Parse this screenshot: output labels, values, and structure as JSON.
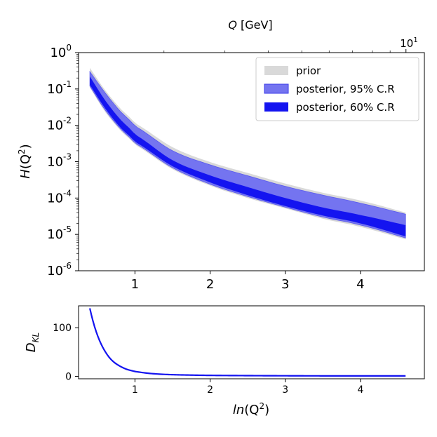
{
  "chart_data": [
    {
      "type": "area",
      "ylabel_main": "H",
      "ylabel_arg": "(Q",
      "ylabel_exp": "2",
      "ylabel_close": ")",
      "top_xlabel_italic": "Q",
      "top_xlabel_unit": " [GeV]",
      "top_tick_base": "10",
      "top_tick_exp": "1",
      "xlim": [
        0.25,
        4.85
      ],
      "ylim_log10": [
        -6,
        0
      ],
      "yscale": "log",
      "x_ticks": [
        "1",
        "2",
        "3",
        "4"
      ],
      "y_ticks": [
        {
          "base": "10",
          "exp": "0"
        },
        {
          "base": "10",
          "exp": "-1"
        },
        {
          "base": "10",
          "exp": "-2"
        },
        {
          "base": "10",
          "exp": "-3"
        },
        {
          "base": "10",
          "exp": "-4"
        },
        {
          "base": "10",
          "exp": "-5"
        },
        {
          "base": "10",
          "exp": "-6"
        }
      ],
      "legend_position": "upper right",
      "series": [
        {
          "name": "prior",
          "color": "#d9d9d9",
          "x": [
            0.4,
            0.6,
            0.8,
            1.0,
            1.5,
            2.0,
            2.5,
            3.0,
            3.5,
            4.0,
            4.6
          ],
          "upper": [
            0.38,
            0.095,
            0.03,
            0.0115,
            0.0025,
            0.00098,
            0.00049,
            0.00025,
            0.00014,
            8.5e-05,
            4e-05
          ],
          "lower": [
            0.11,
            0.024,
            0.0075,
            0.0029,
            0.00062,
            0.00022,
            0.0001,
            5.2e-05,
            2.7e-05,
            1.6e-05,
            7.3e-06
          ]
        },
        {
          "name": "posterior, 95% C.R",
          "color": "#7474f0",
          "x": [
            0.4,
            0.6,
            0.8,
            1.0,
            1.5,
            2.0,
            2.5,
            3.0,
            3.5,
            4.0,
            4.6
          ],
          "upper": [
            0.3,
            0.08,
            0.025,
            0.0095,
            0.002,
            0.00082,
            0.00041,
            0.00021,
            0.00012,
            7.2e-05,
            3.6e-05
          ],
          "lower": [
            0.12,
            0.027,
            0.0083,
            0.0032,
            0.00068,
            0.00024,
            0.00011,
            5.6e-05,
            3e-05,
            1.8e-05,
            8e-06
          ]
        },
        {
          "name": "posterior, 60% C.R",
          "color": "#1414f0",
          "x": [
            0.4,
            0.6,
            0.8,
            1.0,
            1.5,
            2.0,
            2.5,
            3.0,
            3.5,
            4.0,
            4.6
          ],
          "upper": [
            0.22,
            0.05,
            0.015,
            0.0056,
            0.0011,
            0.00042,
            0.0002,
            0.0001,
            5.5e-05,
            3.4e-05,
            1.8e-05
          ],
          "lower": [
            0.13,
            0.03,
            0.009,
            0.0035,
            0.00075,
            0.00027,
            0.00012,
            6e-05,
            3.3e-05,
            2e-05,
            8.8e-06
          ]
        }
      ]
    },
    {
      "type": "line",
      "ylabel_main": "D",
      "ylabel_sub": "KL",
      "xlabel_main": "ln",
      "xlabel_arg": "(Q",
      "xlabel_exp": "2",
      "xlabel_close": ")",
      "xlim": [
        0.25,
        4.85
      ],
      "ylim": [
        -5,
        145
      ],
      "x_ticks": [
        "1",
        "2",
        "3",
        "4"
      ],
      "y_ticks": [
        "0",
        "100"
      ],
      "series": [
        {
          "color": "#1414f0",
          "x": [
            0.4,
            0.5,
            0.6,
            0.7,
            0.8,
            0.9,
            1.0,
            1.2,
            1.4,
            1.6,
            2.0,
            2.5,
            3.0,
            3.5,
            4.0,
            4.6
          ],
          "y": [
            140,
            85,
            52,
            32,
            21,
            14,
            10,
            6,
            4,
            3,
            2,
            1.5,
            1.2,
            1,
            1,
            1
          ]
        }
      ]
    }
  ]
}
